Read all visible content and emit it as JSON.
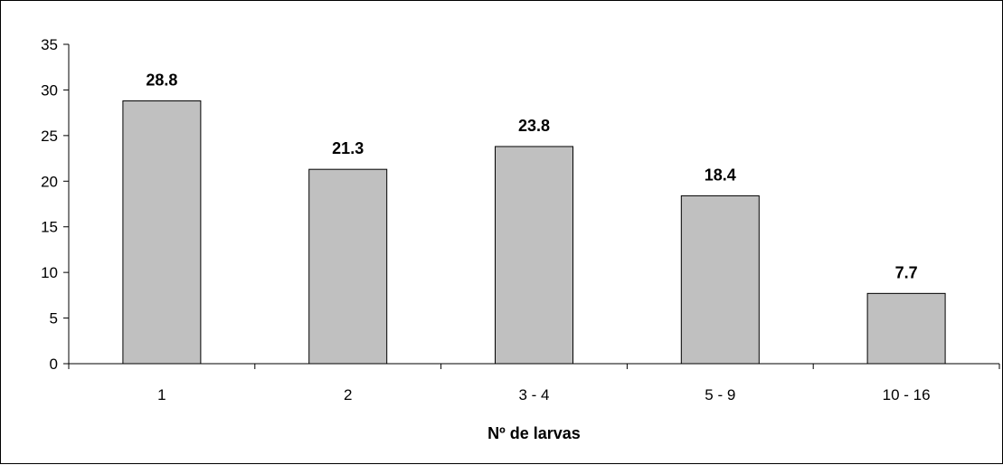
{
  "chart_data": {
    "type": "bar",
    "categories": [
      "1",
      "2",
      "3 - 4",
      "5 - 9",
      "10 - 16"
    ],
    "values": [
      28.8,
      21.3,
      23.8,
      18.4,
      7.7
    ],
    "data_labels": [
      "28.8",
      "21.3",
      "23.8",
      "18.4",
      "7.7"
    ],
    "title": "",
    "xlabel": "Nº de larvas",
    "ylabel": "",
    "ylim": [
      0,
      35
    ],
    "yticks": [
      0,
      5,
      10,
      15,
      20,
      25,
      30,
      35
    ],
    "grid": false,
    "legend": "none",
    "bar_color": "#c0c0c0",
    "bar_edge_color": "#000000"
  }
}
